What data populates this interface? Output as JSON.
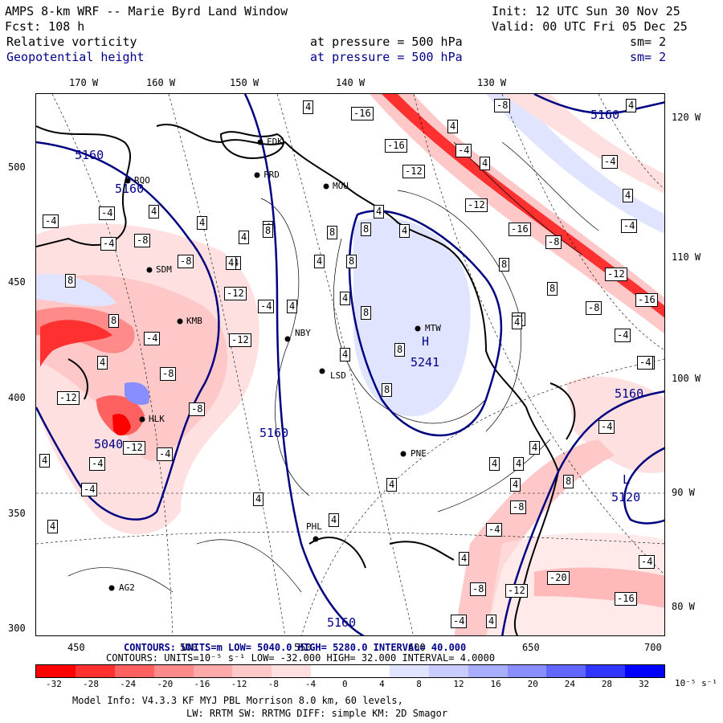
{
  "header": {
    "title": "AMPS 8-km WRF -- Marie Byrd Land Window",
    "init": "Init: 12 UTC Sun 30 Nov 25",
    "fcst": "Fcst:  108 h",
    "valid": "Valid: 00 UTC Fri 05 Dec 25",
    "field1": "Relative vorticity",
    "field1_level": "at pressure =  500 hPa",
    "field1_sm": "sm= 2",
    "field2": "Geopotential height",
    "field2_level": "at pressure =  500 hPa",
    "field2_sm": "sm= 2"
  },
  "axes": {
    "lon_top": [
      "170 W",
      "160 W",
      "150 W",
      "140 W",
      "130 W"
    ],
    "lon_right": [
      "120 W",
      "110 W",
      "100 W",
      "90 W",
      "80 W"
    ],
    "y_left": [
      "500",
      "450",
      "400",
      "350",
      "300"
    ],
    "x_bottom": [
      "450",
      "500",
      "550",
      "600",
      "650",
      "700"
    ]
  },
  "stations": [
    "FDK",
    "FRD",
    "MOU",
    "RQO",
    "SDM",
    "KMB",
    "NBY",
    "LSD",
    "MTW",
    "PNE",
    "PHL",
    "HLK",
    "AG2"
  ],
  "height_labels": [
    "5160",
    "5160",
    "5160",
    "5160",
    "5160",
    "5160",
    "5241",
    "5040",
    "5120"
  ],
  "height_extrema": {
    "H": "H",
    "L": "L"
  },
  "vort_labels": [
    "4",
    "-4",
    "8",
    "-8",
    "-12",
    "-16",
    "12",
    "-20"
  ],
  "footer": {
    "height_contours": "CONTOURS:  UNITS=m   LOW=  5040.0      HIGH=  5280.0      INTERVAL=  40.000",
    "vort_contours": "CONTOURS:  UNITS=10⁻⁵ s⁻¹  LOW= -32.000         HIGH=  32.000       INTERVAL=   4.0000",
    "colorbar_labels": [
      "-32",
      "-28",
      "-24",
      "-20",
      "-16",
      "-12",
      "-8",
      "-4",
      "0",
      "4",
      "8",
      "12",
      "16",
      "20",
      "24",
      "28",
      "32"
    ],
    "colorbar_units": "10⁻⁵ s⁻¹",
    "model_info_1": "Model Info: V4.3.3   KF     MYJ PBL  Morrison          8.0 km,  60 levels,",
    "model_info_2": "LW: RRTM SW: RRTMG   DIFF: simple KM: 2D Smagor"
  },
  "colors": {
    "neg": [
      "#ff0000",
      "#ff3030",
      "#ff6060",
      "#ff8a8a",
      "#ffaaaa",
      "#ffc8c8",
      "#ffe0e0",
      "#ffffff"
    ],
    "pos": [
      "#ffffff",
      "#e0e4ff",
      "#c8ccff",
      "#a8aeff",
      "#888eff",
      "#6066ff",
      "#3035ff",
      "#0000ff"
    ],
    "height_line": "#000080"
  }
}
